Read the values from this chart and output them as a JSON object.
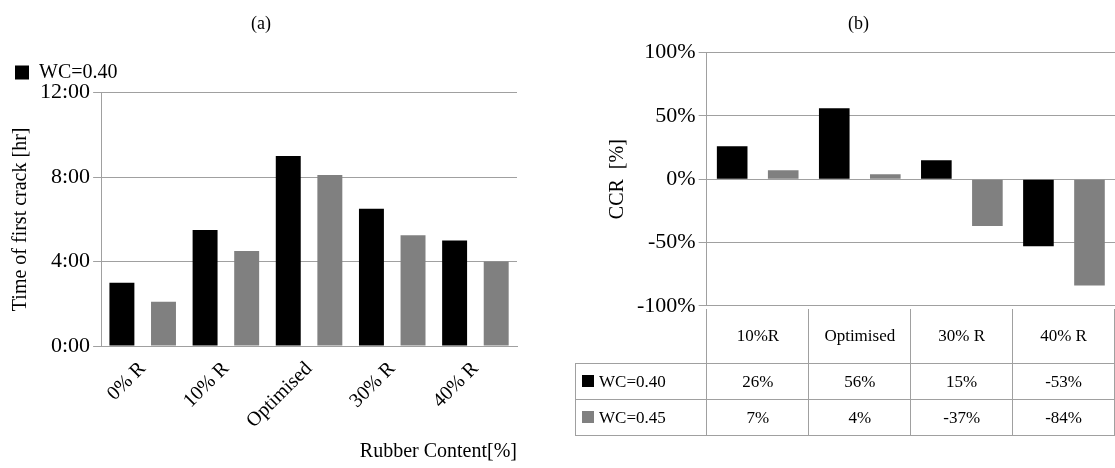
{
  "chart_data": [
    {
      "type": "bar",
      "title": "(a)",
      "xlabel": "Rubber Content[%]",
      "ylabel": "Time of first crack [hr]",
      "categories": [
        "0% R",
        "10% R",
        "Optimised",
        "30% R",
        "40% R"
      ],
      "series": [
        {
          "name": "WC=0.40",
          "color": "#000000",
          "values": [
            3.0,
            5.5,
            9.0,
            6.5,
            5.0
          ]
        },
        {
          "color": "#808080",
          "values": [
            2.1,
            4.5,
            8.1,
            5.25,
            4.0
          ]
        }
      ],
      "ylim": [
        0,
        12
      ],
      "yticks": [
        {
          "value": 0,
          "label": "0:00"
        },
        {
          "value": 4,
          "label": "4:00"
        },
        {
          "value": 8,
          "label": "8:00"
        },
        {
          "value": 12,
          "label": "12:00"
        }
      ],
      "grid": "y",
      "legend": "top left"
    },
    {
      "type": "bar",
      "title": "(b)",
      "ylabel": "CCR  [%]",
      "categories": [
        "10%R",
        "Optimised",
        "30% R",
        "40% R"
      ],
      "series": [
        {
          "name": "WC=0.40",
          "color": "#000000",
          "values": [
            26,
            56,
            15,
            -53
          ],
          "value_labels": [
            "26%",
            "56%",
            "15%",
            "-53%"
          ]
        },
        {
          "name": "WC=0.45",
          "color": "#808080",
          "values": [
            7,
            4,
            -37,
            -84
          ],
          "value_labels": [
            "7%",
            "4%",
            "-37%",
            "-84%"
          ]
        }
      ],
      "ylim": [
        -100,
        100
      ],
      "yticks": [
        {
          "value": -100,
          "label": "-100%"
        },
        {
          "value": -50,
          "label": "-50%"
        },
        {
          "value": 0,
          "label": "0%"
        },
        {
          "value": 50,
          "label": "50%"
        },
        {
          "value": 100,
          "label": "100%"
        }
      ],
      "grid": "y",
      "legend": "bottom left"
    }
  ]
}
